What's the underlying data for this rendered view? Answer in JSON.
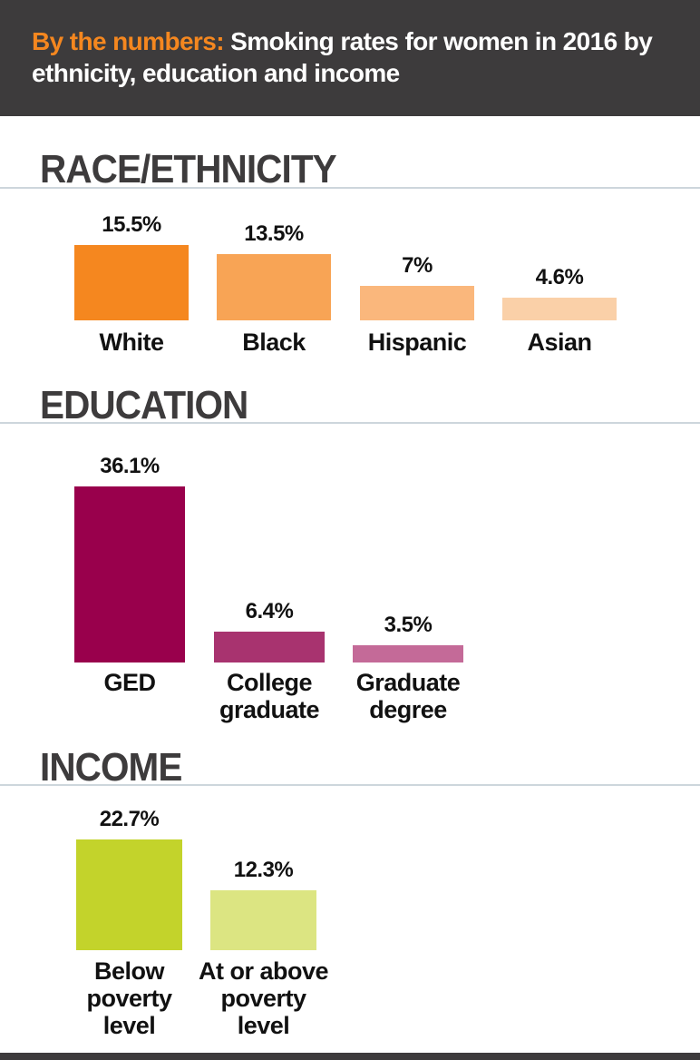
{
  "header": {
    "title_highlight": "By the numbers:",
    "title_rest": " Smoking rates for women in 2016 by ethnicity, education and income",
    "highlight_color": "#f5871f",
    "background_color": "#3d3b3c"
  },
  "chart_data": [
    {
      "type": "bar",
      "title": "RACE/ETHNICITY",
      "categories": [
        "White",
        "Black",
        "Hispanic",
        "Asian"
      ],
      "values": [
        15.5,
        13.5,
        7,
        4.6
      ],
      "labels": [
        "15.5%",
        "13.5%",
        "7%",
        "4.6%"
      ],
      "colors": [
        "#f5871f",
        "#f8a455",
        "#fab77c",
        "#fad0a8"
      ],
      "unit": "%",
      "grid": false
    },
    {
      "type": "bar",
      "title": "EDUCATION",
      "categories": [
        "GED",
        "College\ngraduate",
        "Graduate\ndegree"
      ],
      "values": [
        36.1,
        6.4,
        3.5
      ],
      "labels": [
        "36.1%",
        "6.4%",
        "3.5%"
      ],
      "colors": [
        "#99004c",
        "#a8336f",
        "#c46a98"
      ],
      "unit": "%",
      "grid": false
    },
    {
      "type": "bar",
      "title": "INCOME",
      "categories": [
        "Below\npoverty\nlevel",
        "At or above\npoverty\nlevel"
      ],
      "values": [
        22.7,
        12.3
      ],
      "labels": [
        "22.7%",
        "12.3%"
      ],
      "colors": [
        "#c3d32b",
        "#dce582"
      ],
      "unit": "%",
      "grid": false
    }
  ]
}
